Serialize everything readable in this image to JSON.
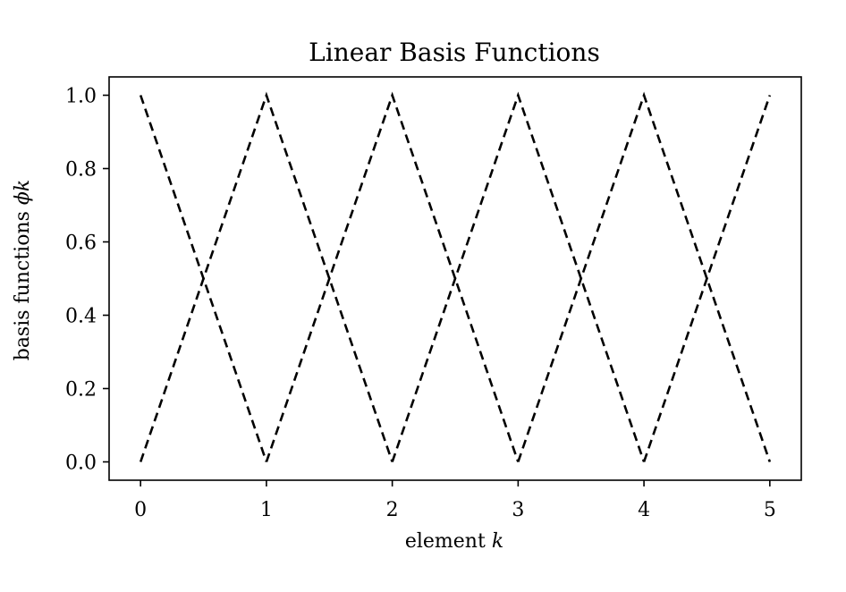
{
  "chart_data": {
    "type": "line",
    "title": "Linear Basis Functions",
    "xlabel": "element",
    "xlabel_var": "k",
    "ylabel": "basis functions",
    "ylabel_var": "ϕk",
    "xlim": [
      -0.25,
      5.25
    ],
    "ylim": [
      -0.05,
      1.05
    ],
    "xticks": [
      0,
      1,
      2,
      3,
      4,
      5
    ],
    "xtick_labels": [
      "0",
      "1",
      "2",
      "3",
      "4",
      "5"
    ],
    "yticks": [
      0.0,
      0.2,
      0.4,
      0.6,
      0.8,
      1.0
    ],
    "ytick_labels": [
      "0.0",
      "0.2",
      "0.4",
      "0.6",
      "0.8",
      "1.0"
    ],
    "grid": false,
    "line_style": "dashed",
    "line_color": "#000000",
    "series": [
      {
        "x": [
          0,
          1
        ],
        "y": [
          1,
          0
        ]
      },
      {
        "x": [
          0,
          1,
          2
        ],
        "y": [
          0,
          1,
          0
        ]
      },
      {
        "x": [
          1,
          2,
          3
        ],
        "y": [
          0,
          1,
          0
        ]
      },
      {
        "x": [
          2,
          3,
          4
        ],
        "y": [
          0,
          1,
          0
        ]
      },
      {
        "x": [
          3,
          4,
          5
        ],
        "y": [
          0,
          1,
          0
        ]
      },
      {
        "x": [
          4,
          5
        ],
        "y": [
          0,
          1
        ]
      }
    ]
  }
}
